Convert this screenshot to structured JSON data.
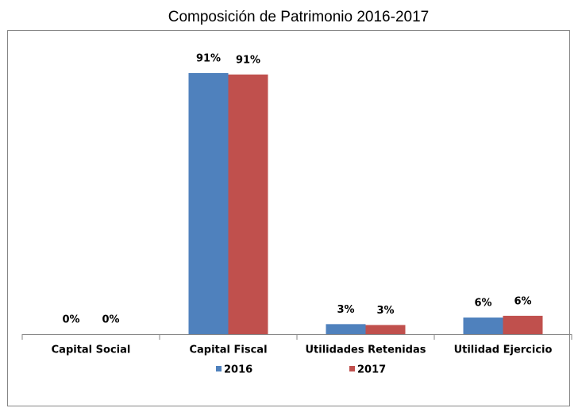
{
  "chart_data": {
    "type": "bar",
    "title": "Composición de Patrimonio 2016-2017",
    "categories": [
      "Capital Social",
      "Capital Fiscal",
      "Utilidades Retenidas",
      "Utilidad Ejercicio"
    ],
    "series": [
      {
        "name": "2016",
        "color": "#4f81bd",
        "values": [
          0,
          91.0,
          3.5,
          5.8
        ],
        "value_labels": [
          "0%",
          "91%",
          "3%",
          "6%"
        ]
      },
      {
        "name": "2017",
        "color": "#c0504d",
        "values": [
          0,
          90.5,
          3.2,
          6.4
        ],
        "value_labels": [
          "0%",
          "91%",
          "3%",
          "6%"
        ]
      }
    ]
  }
}
